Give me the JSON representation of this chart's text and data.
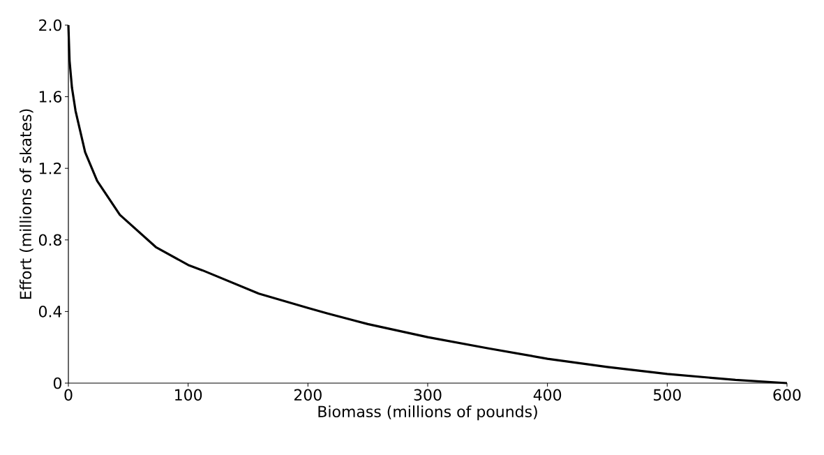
{
  "chart_data": {
    "type": "line",
    "xlabel": "Biomass (millions of pounds)",
    "ylabel": "Effort (millions of skates)",
    "x": [
      0,
      1,
      3,
      6,
      14,
      24,
      43,
      73,
      100,
      112,
      159,
      200,
      216,
      250,
      300,
      350,
      400,
      450,
      500,
      557,
      600
    ],
    "series": [
      {
        "color": "#000000",
        "values": [
          2.0,
          1.8,
          1.65,
          1.52,
          1.29,
          1.13,
          0.94,
          0.76,
          0.66,
          0.63,
          0.5,
          0.42,
          0.39,
          0.33,
          0.257,
          0.195,
          0.136,
          0.09,
          0.051,
          0.018,
          0.0
        ]
      }
    ],
    "xlim": [
      0,
      600
    ],
    "ylim": [
      0,
      2.0
    ],
    "xticks": [
      0,
      100,
      200,
      300,
      400,
      500,
      600
    ],
    "yticks": [
      0,
      0.4,
      0.8,
      1.2,
      1.6,
      {
        "value": 2,
        "label": "2.0"
      }
    ],
    "grid": false,
    "marker": "none",
    "line_style": "solid"
  }
}
